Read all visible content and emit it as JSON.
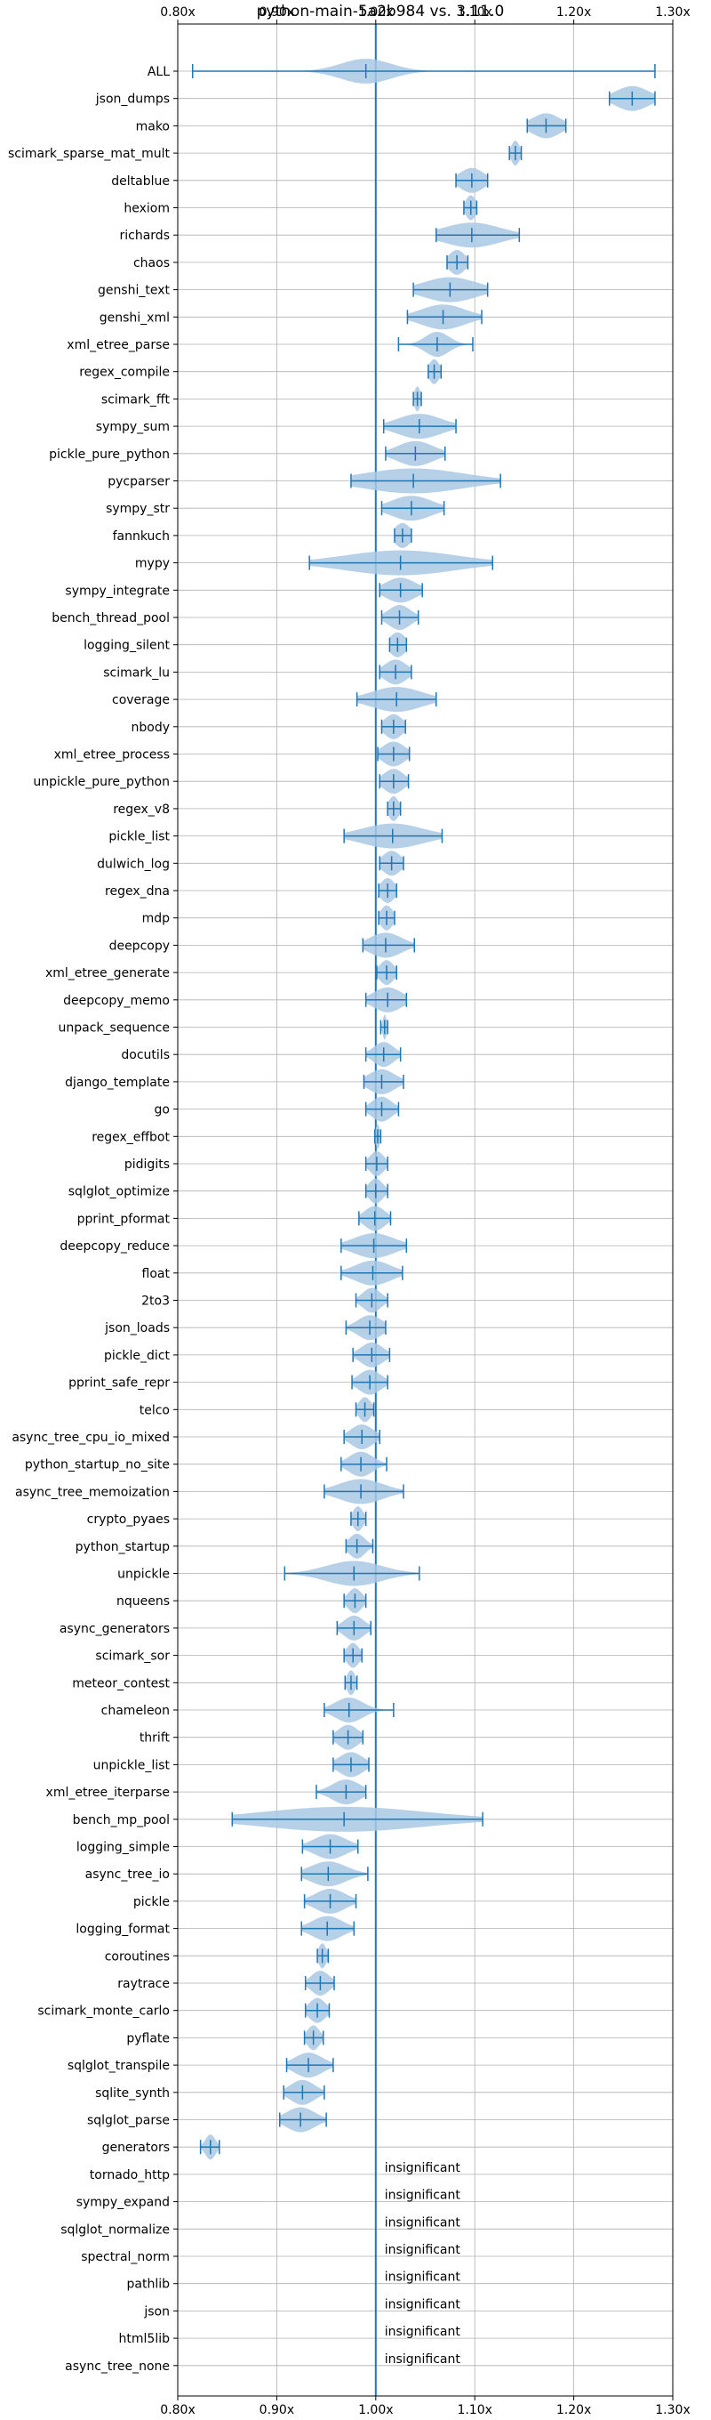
{
  "chart_data": {
    "type": "violin",
    "orientation": "horizontal",
    "title": "python-main-5a2b984 vs. 3.11.0",
    "xlim": [
      0.8,
      1.3
    ],
    "x_ticks": [
      0.8,
      0.9,
      1.0,
      1.1,
      1.2,
      1.3
    ],
    "x_tick_labels": [
      "0.80x",
      "0.90x",
      "1.00x",
      "1.10x",
      "1.20x",
      "1.30x"
    ],
    "x_ticks_position": "top-and-bottom",
    "grid": true,
    "reference_line": 1.0,
    "colors": {
      "violin": "#a9c8e4",
      "line": "#1f77b4",
      "grid": "#b0b0b0"
    },
    "insignificant_label": "insignificant",
    "benchmarks": [
      {
        "name": "ALL",
        "min": 0.815,
        "max": 1.282,
        "median": 0.99,
        "spread": 0.025
      },
      {
        "name": "json_dumps",
        "min": 1.236,
        "max": 1.282,
        "median": 1.259,
        "spread": 0.016
      },
      {
        "name": "mako",
        "min": 1.153,
        "max": 1.192,
        "median": 1.172,
        "spread": 0.014
      },
      {
        "name": "scimark_sparse_mat_mult",
        "min": 1.135,
        "max": 1.147,
        "median": 1.141,
        "spread": 0.004
      },
      {
        "name": "deltablue",
        "min": 1.081,
        "max": 1.113,
        "median": 1.097,
        "spread": 0.012
      },
      {
        "name": "hexiom",
        "min": 1.089,
        "max": 1.102,
        "median": 1.096,
        "spread": 0.005
      },
      {
        "name": "richards",
        "min": 1.061,
        "max": 1.145,
        "median": 1.097,
        "spread": 0.028
      },
      {
        "name": "chaos",
        "min": 1.072,
        "max": 1.093,
        "median": 1.082,
        "spread": 0.008
      },
      {
        "name": "genshi_text",
        "min": 1.038,
        "max": 1.113,
        "median": 1.075,
        "spread": 0.026
      },
      {
        "name": "genshi_xml",
        "min": 1.032,
        "max": 1.107,
        "median": 1.068,
        "spread": 0.022
      },
      {
        "name": "xml_etree_parse",
        "min": 1.023,
        "max": 1.098,
        "median": 1.062,
        "spread": 0.012
      },
      {
        "name": "regex_compile",
        "min": 1.053,
        "max": 1.066,
        "median": 1.059,
        "spread": 0.005
      },
      {
        "name": "scimark_fft",
        "min": 1.038,
        "max": 1.046,
        "median": 1.042,
        "spread": 0.003
      },
      {
        "name": "sympy_sum",
        "min": 1.008,
        "max": 1.081,
        "median": 1.044,
        "spread": 0.022
      },
      {
        "name": "pickle_pure_python",
        "min": 1.01,
        "max": 1.07,
        "median": 1.04,
        "spread": 0.018
      },
      {
        "name": "pycparser",
        "min": 0.975,
        "max": 1.126,
        "median": 1.038,
        "spread": 0.05
      },
      {
        "name": "sympy_str",
        "min": 1.006,
        "max": 1.069,
        "median": 1.036,
        "spread": 0.02
      },
      {
        "name": "fannkuch",
        "min": 1.019,
        "max": 1.036,
        "median": 1.027,
        "spread": 0.008
      },
      {
        "name": "mypy",
        "min": 0.933,
        "max": 1.118,
        "median": 1.025,
        "spread": 0.055
      },
      {
        "name": "sympy_integrate",
        "min": 1.004,
        "max": 1.047,
        "median": 1.025,
        "spread": 0.015
      },
      {
        "name": "bench_thread_pool",
        "min": 1.006,
        "max": 1.043,
        "median": 1.024,
        "spread": 0.011
      },
      {
        "name": "logging_silent",
        "min": 1.014,
        "max": 1.031,
        "median": 1.022,
        "spread": 0.008
      },
      {
        "name": "scimark_lu",
        "min": 1.004,
        "max": 1.036,
        "median": 1.02,
        "spread": 0.011
      },
      {
        "name": "coverage",
        "min": 0.981,
        "max": 1.061,
        "median": 1.021,
        "spread": 0.025
      },
      {
        "name": "nbody",
        "min": 1.006,
        "max": 1.03,
        "median": 1.018,
        "spread": 0.009
      },
      {
        "name": "xml_etree_process",
        "min": 1.002,
        "max": 1.034,
        "median": 1.018,
        "spread": 0.011
      },
      {
        "name": "unpickle_pure_python",
        "min": 1.004,
        "max": 1.033,
        "median": 1.018,
        "spread": 0.01
      },
      {
        "name": "regex_v8",
        "min": 1.012,
        "max": 1.025,
        "median": 1.018,
        "spread": 0.005
      },
      {
        "name": "pickle_list",
        "min": 0.968,
        "max": 1.067,
        "median": 1.017,
        "spread": 0.03
      },
      {
        "name": "dulwich_log",
        "min": 1.004,
        "max": 1.028,
        "median": 1.016,
        "spread": 0.009
      },
      {
        "name": "regex_dna",
        "min": 1.003,
        "max": 1.021,
        "median": 1.012,
        "spread": 0.007
      },
      {
        "name": "mdp",
        "min": 1.003,
        "max": 1.019,
        "median": 1.011,
        "spread": 0.006
      },
      {
        "name": "deepcopy",
        "min": 0.987,
        "max": 1.039,
        "median": 1.01,
        "spread": 0.016
      },
      {
        "name": "xml_etree_generate",
        "min": 1.001,
        "max": 1.021,
        "median": 1.011,
        "spread": 0.007
      },
      {
        "name": "deepcopy_memo",
        "min": 0.99,
        "max": 1.031,
        "median": 1.012,
        "spread": 0.014
      },
      {
        "name": "unpack_sequence",
        "min": 1.005,
        "max": 1.012,
        "median": 1.009,
        "spread": 0.002
      },
      {
        "name": "docutils",
        "min": 0.99,
        "max": 1.025,
        "median": 1.008,
        "spread": 0.01
      },
      {
        "name": "django_template",
        "min": 0.988,
        "max": 1.028,
        "median": 1.006,
        "spread": 0.013
      },
      {
        "name": "go",
        "min": 0.99,
        "max": 1.023,
        "median": 1.006,
        "spread": 0.01
      },
      {
        "name": "regex_effbot",
        "min": 0.999,
        "max": 1.005,
        "median": 1.002,
        "spread": 0.002
      },
      {
        "name": "pidigits",
        "min": 0.99,
        "max": 1.012,
        "median": 1.001,
        "spread": 0.007
      },
      {
        "name": "sqlglot_optimize",
        "min": 0.99,
        "max": 1.012,
        "median": 1.0,
        "spread": 0.007
      },
      {
        "name": "pprint_pformat",
        "min": 0.983,
        "max": 1.015,
        "median": 0.999,
        "spread": 0.01
      },
      {
        "name": "deepcopy_reduce",
        "min": 0.965,
        "max": 1.031,
        "median": 0.998,
        "spread": 0.02
      },
      {
        "name": "float",
        "min": 0.965,
        "max": 1.027,
        "median": 0.997,
        "spread": 0.018
      },
      {
        "name": "2to3",
        "min": 0.98,
        "max": 1.012,
        "median": 0.996,
        "spread": 0.009
      },
      {
        "name": "json_loads",
        "min": 0.97,
        "max": 1.01,
        "median": 0.994,
        "spread": 0.012
      },
      {
        "name": "pickle_dict",
        "min": 0.977,
        "max": 1.014,
        "median": 0.996,
        "spread": 0.011
      },
      {
        "name": "pprint_safe_repr",
        "min": 0.976,
        "max": 1.012,
        "median": 0.994,
        "spread": 0.011
      },
      {
        "name": "telco",
        "min": 0.98,
        "max": 0.998,
        "median": 0.989,
        "spread": 0.006
      },
      {
        "name": "async_tree_cpu_io_mixed",
        "min": 0.968,
        "max": 1.004,
        "median": 0.986,
        "spread": 0.011
      },
      {
        "name": "python_startup_no_site",
        "min": 0.965,
        "max": 1.011,
        "median": 0.985,
        "spread": 0.012
      },
      {
        "name": "async_tree_memoization",
        "min": 0.948,
        "max": 1.028,
        "median": 0.985,
        "spread": 0.022
      },
      {
        "name": "crypto_pyaes",
        "min": 0.975,
        "max": 0.99,
        "median": 0.982,
        "spread": 0.005
      },
      {
        "name": "python_startup",
        "min": 0.97,
        "max": 0.997,
        "median": 0.981,
        "spread": 0.008
      },
      {
        "name": "unpickle",
        "min": 0.908,
        "max": 1.044,
        "median": 0.978,
        "spread": 0.028
      },
      {
        "name": "nqueens",
        "min": 0.968,
        "max": 0.99,
        "median": 0.979,
        "spread": 0.007
      },
      {
        "name": "async_generators",
        "min": 0.961,
        "max": 0.995,
        "median": 0.978,
        "spread": 0.01
      },
      {
        "name": "scimark_sor",
        "min": 0.968,
        "max": 0.986,
        "median": 0.977,
        "spread": 0.006
      },
      {
        "name": "meteor_contest",
        "min": 0.969,
        "max": 0.981,
        "median": 0.975,
        "spread": 0.004
      },
      {
        "name": "chameleon",
        "min": 0.948,
        "max": 1.018,
        "median": 0.973,
        "spread": 0.014
      },
      {
        "name": "thrift",
        "min": 0.957,
        "max": 0.987,
        "median": 0.972,
        "spread": 0.01
      },
      {
        "name": "unpickle_list",
        "min": 0.957,
        "max": 0.993,
        "median": 0.975,
        "spread": 0.012
      },
      {
        "name": "xml_etree_iterparse",
        "min": 0.94,
        "max": 0.99,
        "median": 0.97,
        "spread": 0.014
      },
      {
        "name": "bench_mp_pool",
        "min": 0.855,
        "max": 1.108,
        "median": 0.968,
        "spread": 0.08
      },
      {
        "name": "logging_simple",
        "min": 0.926,
        "max": 0.982,
        "median": 0.954,
        "spread": 0.016
      },
      {
        "name": "async_tree_io",
        "min": 0.925,
        "max": 0.992,
        "median": 0.952,
        "spread": 0.018
      },
      {
        "name": "pickle",
        "min": 0.928,
        "max": 0.98,
        "median": 0.954,
        "spread": 0.015
      },
      {
        "name": "logging_format",
        "min": 0.925,
        "max": 0.978,
        "median": 0.951,
        "spread": 0.015
      },
      {
        "name": "coroutines",
        "min": 0.941,
        "max": 0.952,
        "median": 0.946,
        "spread": 0.004
      },
      {
        "name": "raytrace",
        "min": 0.929,
        "max": 0.958,
        "median": 0.944,
        "spread": 0.009
      },
      {
        "name": "scimark_monte_carlo",
        "min": 0.929,
        "max": 0.953,
        "median": 0.941,
        "spread": 0.008
      },
      {
        "name": "pyflate",
        "min": 0.928,
        "max": 0.947,
        "median": 0.937,
        "spread": 0.006
      },
      {
        "name": "sqlglot_transpile",
        "min": 0.91,
        "max": 0.957,
        "median": 0.932,
        "spread": 0.014
      },
      {
        "name": "sqlite_synth",
        "min": 0.907,
        "max": 0.948,
        "median": 0.926,
        "spread": 0.012
      },
      {
        "name": "sqlglot_parse",
        "min": 0.903,
        "max": 0.95,
        "median": 0.924,
        "spread": 0.014
      },
      {
        "name": "generators",
        "min": 0.823,
        "max": 0.842,
        "median": 0.833,
        "spread": 0.005
      },
      {
        "name": "tornado_http",
        "insignificant": true
      },
      {
        "name": "sympy_expand",
        "insignificant": true
      },
      {
        "name": "sqlglot_normalize",
        "insignificant": true
      },
      {
        "name": "spectral_norm",
        "insignificant": true
      },
      {
        "name": "pathlib",
        "insignificant": true
      },
      {
        "name": "json",
        "insignificant": true
      },
      {
        "name": "html5lib",
        "insignificant": true
      },
      {
        "name": "async_tree_none",
        "insignificant": true
      }
    ]
  }
}
